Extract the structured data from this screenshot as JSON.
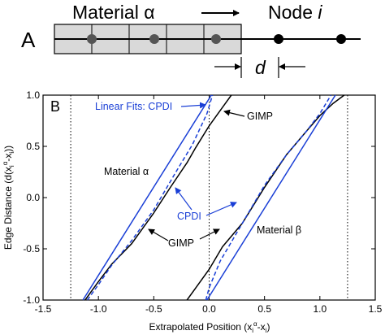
{
  "panel_a": {
    "panel_label": "A",
    "material_label": "Material α",
    "node_label": "Node",
    "node_italic": "i",
    "spacing_label": "d",
    "colors": {
      "cell_fill": "#d9d9d9",
      "stroke": "#000000",
      "dot": "#555555",
      "node": "#000000"
    }
  },
  "chart_data": {
    "type": "line",
    "panel_label": "B",
    "xlabel": "Extrapolated Position (x",
    "xlabel_sub": "i",
    "xlabel_sup": "α",
    "xlabel_tail": "-x",
    "xlabel_sub2": "i",
    "xlabel_close": ")",
    "ylabel": "Edge Distance (d(x",
    "ylabel_sub": "i",
    "ylabel_sup": "α",
    "ylabel_tail": "-x",
    "ylabel_sub2": "i",
    "ylabel_close": "))",
    "xlim": [
      -1.5,
      1.5
    ],
    "ylim": [
      -1.0,
      1.0
    ],
    "xticks": [
      "-1.5",
      "-1.0",
      "-0.5",
      "0.0",
      "0.5",
      "1.0",
      "1.5"
    ],
    "yticks": [
      "1.0",
      "0.5",
      "0.0",
      "-0.5",
      "-1.0"
    ],
    "xtick_values": [
      -1.5,
      -1.0,
      -0.5,
      0.0,
      0.5,
      1.0,
      1.5
    ],
    "ytick_values": [
      1.0,
      0.5,
      0.0,
      -0.5,
      -1.0
    ],
    "vlines": [
      -1.25,
      0.0,
      1.25
    ],
    "colors": {
      "gimp": "#000000",
      "cpdi": "#1a3fd6",
      "fit": "#1a3fd6",
      "vline": "#000000"
    },
    "series": [
      {
        "name": "GIMP",
        "key": "gimp_alpha",
        "x": [
          -1.12,
          -1.0,
          -0.88,
          -0.7,
          -0.5,
          -0.35,
          -0.2,
          -0.12,
          0.0,
          0.12,
          0.2
        ],
        "y": [
          -1.0,
          -0.82,
          -0.65,
          -0.45,
          -0.15,
          0.1,
          0.34,
          0.49,
          0.7,
          0.88,
          1.0
        ]
      },
      {
        "name": "CPDI",
        "key": "cpdi_alpha",
        "x": [
          -1.1,
          -1.0,
          -0.88,
          -0.7,
          -0.5,
          -0.3,
          -0.15,
          -0.02,
          0.03
        ],
        "y": [
          -1.0,
          -0.85,
          -0.66,
          -0.42,
          -0.12,
          0.25,
          0.52,
          0.82,
          1.0
        ]
      },
      {
        "name": "Linear Fit",
        "key": "fit_alpha",
        "x": [
          -1.14,
          0.02
        ],
        "y": [
          -1.0,
          1.0
        ]
      },
      {
        "name": "GIMP",
        "key": "gimp_beta",
        "x": [
          -0.2,
          -0.12,
          0.0,
          0.12,
          0.3,
          0.5,
          0.7,
          0.88,
          1.0,
          1.12,
          1.22
        ],
        "y": [
          -1.0,
          -0.88,
          -0.7,
          -0.48,
          -0.25,
          0.1,
          0.42,
          0.65,
          0.8,
          0.92,
          1.0
        ]
      },
      {
        "name": "CPDI",
        "key": "cpdi_beta",
        "x": [
          -0.03,
          0.0,
          0.1,
          0.3,
          0.5,
          0.7,
          0.88,
          1.0,
          1.1
        ],
        "y": [
          -1.0,
          -0.88,
          -0.62,
          -0.25,
          0.12,
          0.42,
          0.65,
          0.82,
          1.0
        ]
      },
      {
        "name": "Linear Fit",
        "key": "fit_beta",
        "x": [
          -0.02,
          1.14
        ],
        "y": [
          -1.0,
          1.0
        ]
      }
    ],
    "annotations": {
      "linear_fits_label": "Linear Fits: CPDI",
      "gimp_top_label": "GIMP",
      "material_alpha_label": "Material α",
      "cpdi_label": "CPDI",
      "gimp_bottom_label": "GIMP",
      "material_beta_label": "Material β"
    }
  }
}
